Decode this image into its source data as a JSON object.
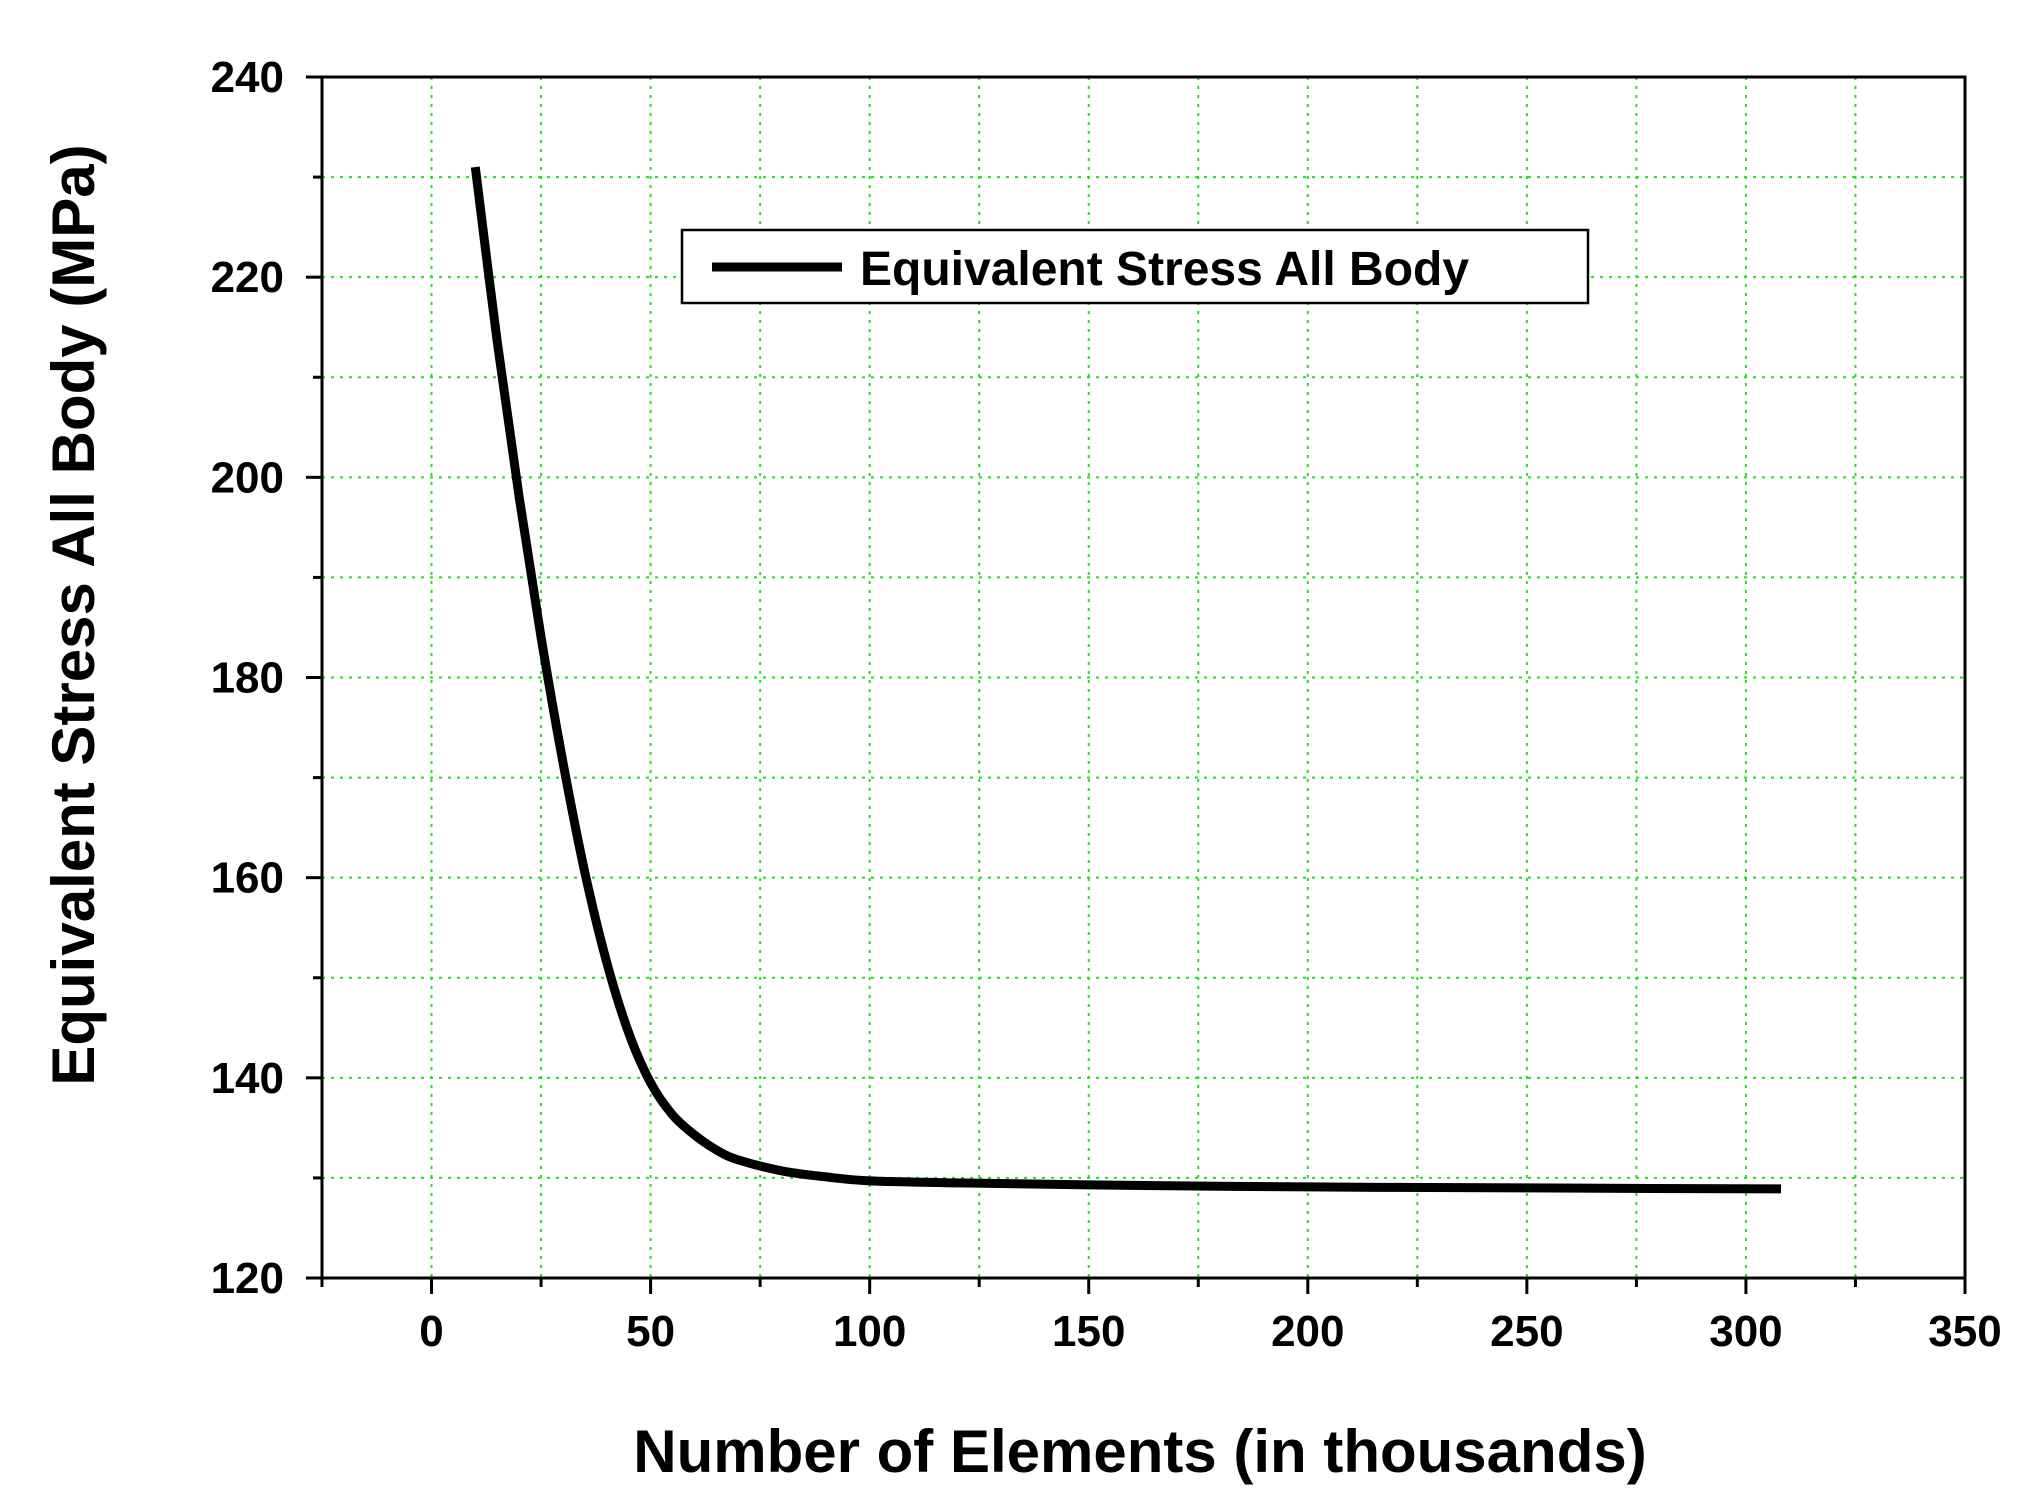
{
  "chart_data": {
    "type": "line",
    "title": "",
    "xlabel": "Number of Elements (in thousands)",
    "ylabel": "Equivalent Stress All Body (MPa)",
    "xlim": [
      -25,
      350
    ],
    "ylim": [
      120,
      240
    ],
    "x_ticks": [
      0,
      50,
      100,
      150,
      200,
      250,
      300,
      350
    ],
    "y_ticks": [
      120,
      140,
      160,
      180,
      200,
      220,
      240
    ],
    "x_tick_labels": [
      "0",
      "50",
      "100",
      "150",
      "200",
      "250",
      "300",
      "350"
    ],
    "y_tick_labels": [
      "120",
      "140",
      "160",
      "180",
      "200",
      "220",
      "240"
    ],
    "grid": true,
    "grid_color": "#22dd22",
    "legend": {
      "position": "top-center",
      "entries": [
        "Equivalent Stress All Body"
      ]
    },
    "series": [
      {
        "name": "Equivalent Stress All Body",
        "color": "#000000",
        "x": [
          10,
          15,
          20,
          25,
          30,
          35,
          40,
          45,
          50,
          55,
          60,
          65,
          70,
          80,
          90,
          100,
          120,
          150,
          200,
          250,
          308
        ],
        "y": [
          231,
          213.5,
          198,
          184,
          171.5,
          160.5,
          151.5,
          144.5,
          139.5,
          136.3,
          134.3,
          132.8,
          131.8,
          130.7,
          130.1,
          129.7,
          129.5,
          129.3,
          129.1,
          129.0,
          128.9
        ]
      }
    ]
  }
}
